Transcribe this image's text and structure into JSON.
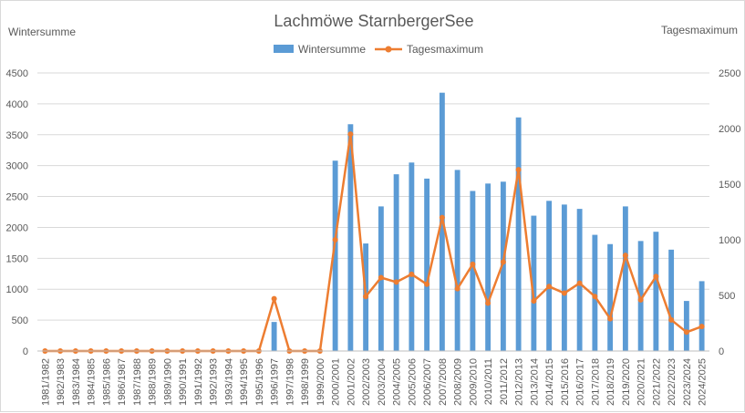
{
  "chart_data": {
    "type": "bar+line",
    "title": "Lachmöwe StarnbergerSee",
    "y_left_label": "Wintersumme",
    "y_right_label": "Tagesmaximum",
    "y_left_lim": [
      0,
      4500
    ],
    "y_right_lim": [
      0,
      2500
    ],
    "y_left_ticks": [
      "0",
      "500",
      "1000",
      "1500",
      "2000",
      "2500",
      "3000",
      "3500",
      "4000",
      "4500"
    ],
    "y_right_ticks": [
      "0",
      "500",
      "1000",
      "1500",
      "2000",
      "2500"
    ],
    "grid": true,
    "legend_position": "top-center",
    "categories": [
      "1981/1982",
      "1982/1983",
      "1983/1984",
      "1984/1985",
      "1985/1986",
      "1986/1987",
      "1987/1988",
      "1988/1989",
      "1989/1990",
      "1990/1991",
      "1991/1992",
      "1992/1993",
      "1993/1994",
      "1994/1995",
      "1995/1996",
      "1996/1997",
      "1997/1998",
      "1998/1999",
      "1999/2000",
      "2000/2001",
      "2001/2002",
      "2002/2003",
      "2003/2004",
      "2004/2005",
      "2005/2006",
      "2006/2007",
      "2007/2008",
      "2008/2009",
      "2009/2010",
      "2010/2011",
      "2011/2012",
      "2012/2013",
      "2013/2014",
      "2014/2015",
      "2015/2016",
      "2016/2017",
      "2017/2018",
      "2018/2019",
      "2019/2020",
      "2020/2021",
      "2021/2022",
      "2022/2023",
      "2023/2024",
      "2024/2025"
    ],
    "series": [
      {
        "name": "Wintersumme",
        "type": "bar",
        "axis": "left",
        "color": "#5b9bd5",
        "values": [
          0,
          0,
          0,
          0,
          0,
          0,
          0,
          0,
          0,
          0,
          0,
          0,
          0,
          0,
          0,
          470,
          0,
          0,
          0,
          3080,
          3670,
          1740,
          2340,
          2860,
          3050,
          2790,
          4180,
          2930,
          2590,
          2710,
          2740,
          3780,
          2190,
          2430,
          2370,
          2300,
          1880,
          1730,
          2340,
          1780,
          1930,
          1640,
          810,
          1130
        ]
      },
      {
        "name": "Tagesmaximum",
        "type": "line",
        "axis": "right",
        "color": "#ed7d31",
        "values": [
          0,
          0,
          0,
          0,
          0,
          0,
          0,
          0,
          0,
          0,
          0,
          0,
          0,
          0,
          0,
          470,
          0,
          0,
          0,
          1000,
          1950,
          490,
          660,
          620,
          690,
          600,
          1200,
          560,
          780,
          430,
          800,
          1630,
          450,
          580,
          520,
          610,
          490,
          290,
          860,
          460,
          670,
          280,
          170,
          220
        ]
      }
    ]
  }
}
